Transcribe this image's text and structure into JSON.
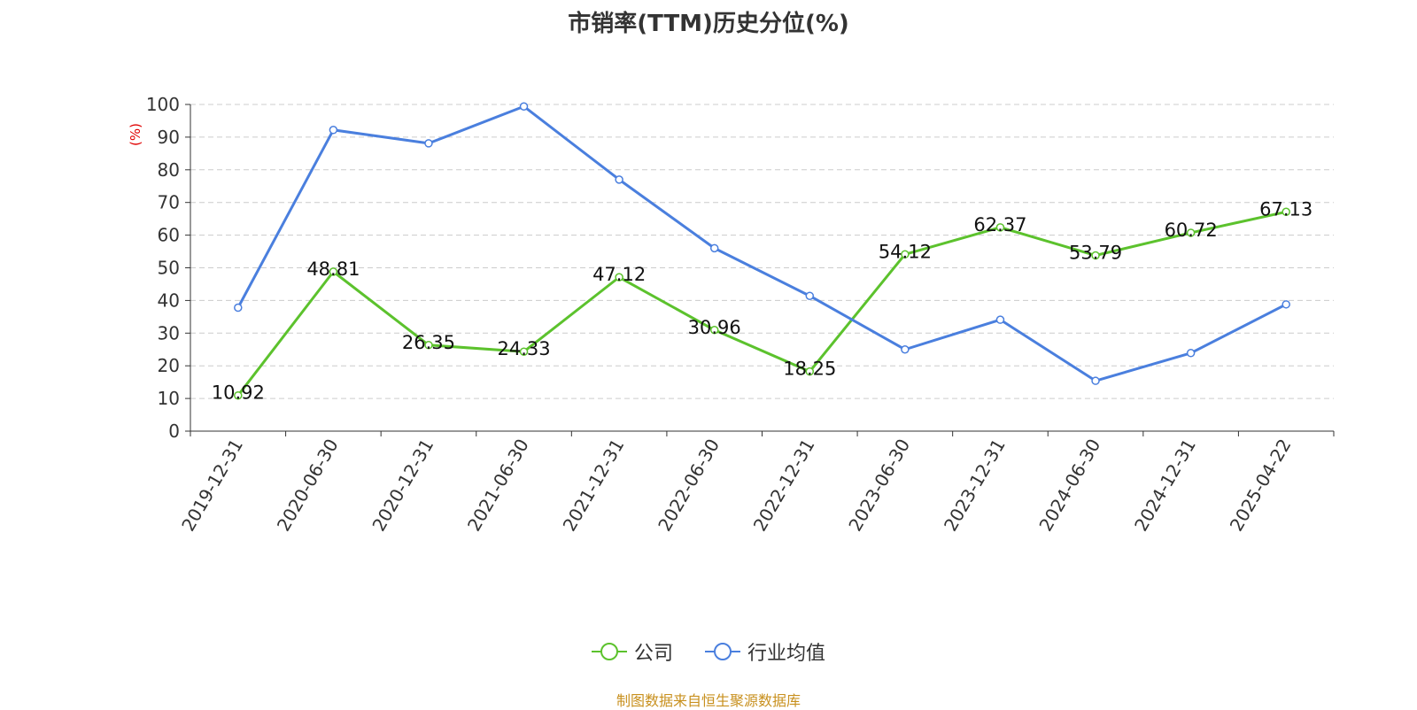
{
  "chart_data": {
    "type": "line",
    "title": "市销率(TTM)历史分位(%)",
    "ylabel": "(%)",
    "ylim": [
      0,
      100
    ],
    "yticks": [
      0,
      10,
      20,
      30,
      40,
      50,
      60,
      70,
      80,
      90,
      100
    ],
    "grid": true,
    "legend_position": "bottom",
    "categories": [
      "2019-12-31",
      "2020-06-30",
      "2020-12-31",
      "2021-06-30",
      "2021-12-31",
      "2022-06-30",
      "2022-12-31",
      "2023-06-30",
      "2023-12-31",
      "2024-06-30",
      "2024-12-31",
      "2025-04-22"
    ],
    "series": [
      {
        "name": "公司",
        "color": "#5cc22d",
        "values": [
          10.92,
          48.81,
          26.35,
          24.33,
          47.12,
          30.96,
          18.25,
          54.12,
          62.37,
          53.79,
          60.72,
          67.13
        ],
        "labels": [
          "10.92",
          "48.81",
          "26.35",
          "24.33",
          "47.12",
          "30.96",
          "18.25",
          "54.12",
          "62.37",
          "53.79",
          "60.72",
          "67.13"
        ]
      },
      {
        "name": "行业均值",
        "color": "#4a7fde",
        "values": [
          37.8,
          92.2,
          88.1,
          99.4,
          77.0,
          56.0,
          41.4,
          25.0,
          34.1,
          15.4,
          23.9,
          38.8
        ]
      }
    ]
  },
  "source": {
    "text": "制图数据来自恒生聚源数据库",
    "color": "#c8901e"
  }
}
